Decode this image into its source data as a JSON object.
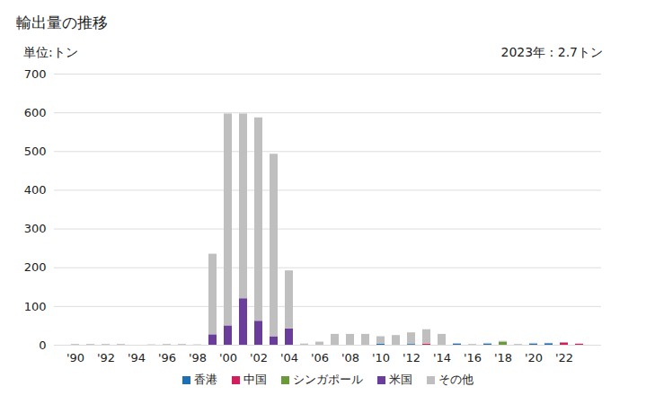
{
  "chart_data": {
    "type": "bar",
    "title": "輸出量の推移",
    "ylabel": "単位:トン",
    "annotation": "2023年 : 2.7トン",
    "stacked": true,
    "grid": true,
    "legend": "bottom",
    "categories": [
      "'90",
      null,
      "'92",
      null,
      "'94",
      null,
      "'96",
      null,
      "'98",
      null,
      "'00",
      null,
      "'02",
      null,
      "'04",
      null,
      "'06",
      null,
      "'08",
      null,
      "'10",
      null,
      "'12",
      null,
      "'14",
      null,
      "'16",
      null,
      "'18",
      null,
      "'20",
      null,
      "'22",
      null
    ],
    "series": [
      {
        "name": "香港",
        "color": "#1f6fb5",
        "values": [
          0,
          0,
          0,
          0,
          0,
          0,
          0,
          0,
          0,
          0,
          0,
          0,
          0,
          0,
          0,
          0,
          0,
          0,
          0,
          0,
          3,
          0,
          2,
          0,
          0,
          3,
          0,
          3,
          0,
          0,
          3,
          4,
          0,
          0
        ]
      },
      {
        "name": "中国",
        "color": "#d21f5b",
        "values": [
          0,
          0,
          0,
          0,
          0,
          0,
          0,
          0,
          0,
          0,
          0,
          0,
          0,
          0,
          0,
          0,
          0,
          0,
          0,
          0,
          0,
          0,
          0,
          3,
          0,
          0,
          0,
          0,
          0,
          0,
          0,
          0,
          6,
          2.7
        ]
      },
      {
        "name": "シンガポール",
        "color": "#6b9a3a",
        "values": [
          0,
          0,
          0,
          0,
          0,
          0,
          0,
          0,
          0,
          0,
          0,
          0,
          0,
          0,
          0,
          0,
          0,
          0,
          0,
          0,
          0,
          0,
          0,
          0,
          0,
          0,
          0,
          0,
          8,
          0,
          0,
          0,
          0,
          0
        ]
      },
      {
        "name": "米国",
        "color": "#6a3d9a",
        "values": [
          0,
          0,
          0,
          0,
          0,
          0,
          0,
          0,
          0,
          27,
          50,
          120,
          62,
          22,
          42,
          0,
          0,
          0,
          0,
          0,
          0,
          0,
          0,
          0,
          0,
          0,
          0,
          0,
          0,
          0,
          0,
          0,
          0,
          0
        ]
      },
      {
        "name": "その他",
        "color": "#bfbfbf",
        "values": [
          2,
          2,
          2,
          2,
          0,
          1,
          2,
          2,
          1,
          208,
          547,
          477,
          525,
          471,
          150,
          3,
          8,
          28,
          28,
          28,
          19,
          25,
          30,
          37,
          28,
          1,
          2,
          2,
          2,
          2,
          2,
          1,
          1,
          0
        ]
      }
    ],
    "ylim": [
      0,
      700
    ],
    "yticks": [
      0,
      100,
      200,
      300,
      400,
      500,
      600,
      700
    ]
  }
}
